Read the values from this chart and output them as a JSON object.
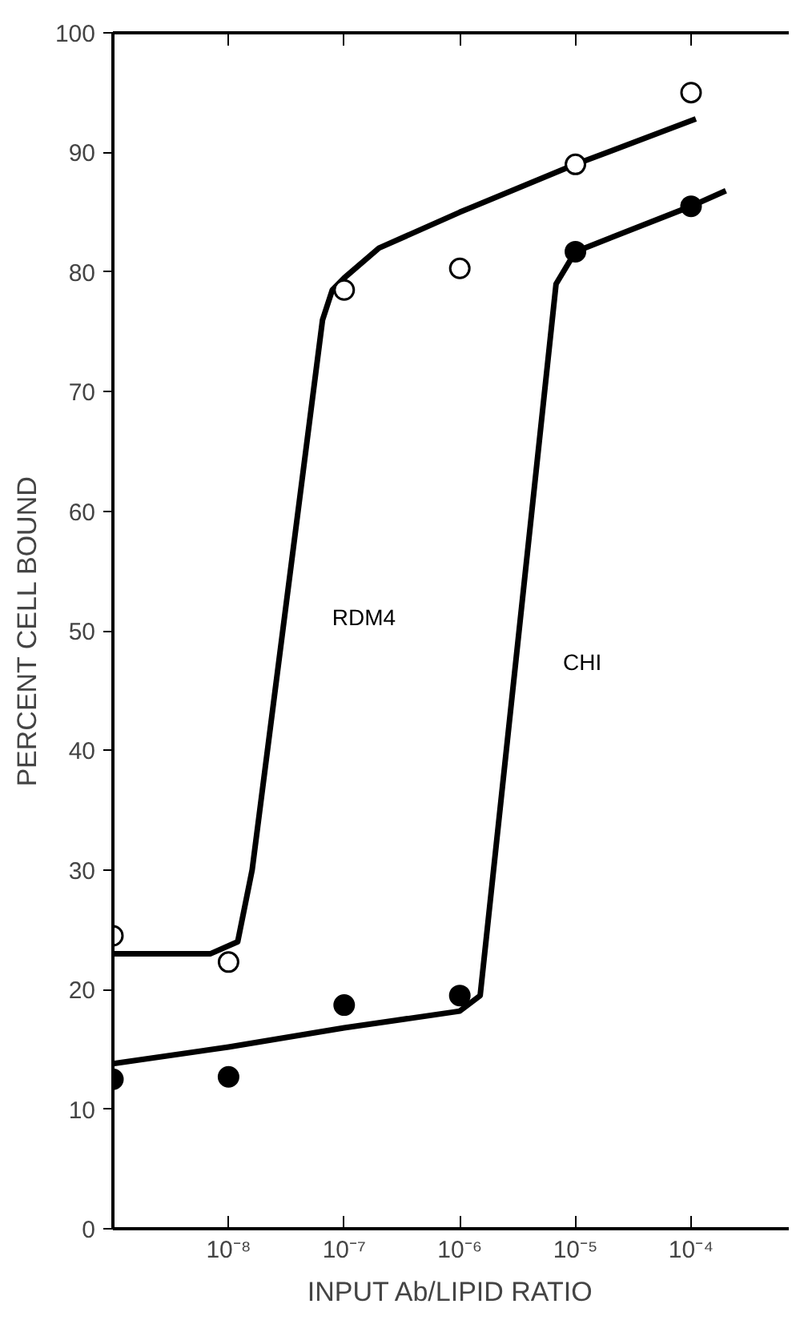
{
  "chart_data": {
    "type": "scatter",
    "xlabel": "INPUT Ab/LIPID RATIO",
    "ylabel": "PERCENT CELL BOUND",
    "log": "x",
    "grid": false,
    "xlim": [
      1e-09,
      0.0007
    ],
    "ylim": [
      0,
      100
    ],
    "xticks": [
      {
        "value": 1e-08,
        "label": "10⁻⁸"
      },
      {
        "value": 1e-07,
        "label": "10⁻⁷"
      },
      {
        "value": 1e-06,
        "label": "10⁻⁶"
      },
      {
        "value": 1e-05,
        "label": "10⁻⁵"
      },
      {
        "value": 0.0001,
        "label": "10⁻⁴"
      }
    ],
    "yticks": [
      0,
      10,
      20,
      30,
      40,
      50,
      60,
      70,
      80,
      90,
      100
    ],
    "series": [
      {
        "marker": "circle",
        "color": "#ffffff",
        "x": [
          1e-09,
          1e-08,
          1e-07,
          1e-06,
          1e-05,
          0.0001
        ],
        "values": [
          24.5,
          22.3,
          78.5,
          80.3,
          89,
          95
        ]
      },
      {
        "marker": "circle",
        "color": "#000000",
        "x": [
          1e-09,
          1e-08,
          1e-07,
          1e-06,
          1e-05,
          0.0001
        ],
        "values": [
          12.5,
          12.7,
          18.7,
          19.5,
          81.7,
          85.5
        ]
      },
      {
        "type": "line",
        "marker": "none",
        "name": "RDM4",
        "color": "#000000",
        "x": [
          1e-09,
          7e-09,
          1.2e-08,
          1.6e-08,
          6.5e-08,
          7.9e-08,
          1e-07,
          2e-07,
          1e-06,
          1e-05,
          0.00011
        ],
        "values": [
          23,
          23,
          24,
          30,
          76,
          78.5,
          79.5,
          82,
          85,
          89,
          92.8
        ]
      },
      {
        "type": "line",
        "marker": "none",
        "name": "CHI",
        "color": "#000000",
        "x": [
          1e-09,
          1e-08,
          1e-07,
          1e-06,
          1.5e-06,
          6.8e-06,
          1e-05,
          0.0001,
          0.0002
        ],
        "values": [
          13.8,
          15.2,
          16.8,
          18.2,
          19.5,
          79,
          81.7,
          85.5,
          86.8
        ]
      }
    ]
  }
}
